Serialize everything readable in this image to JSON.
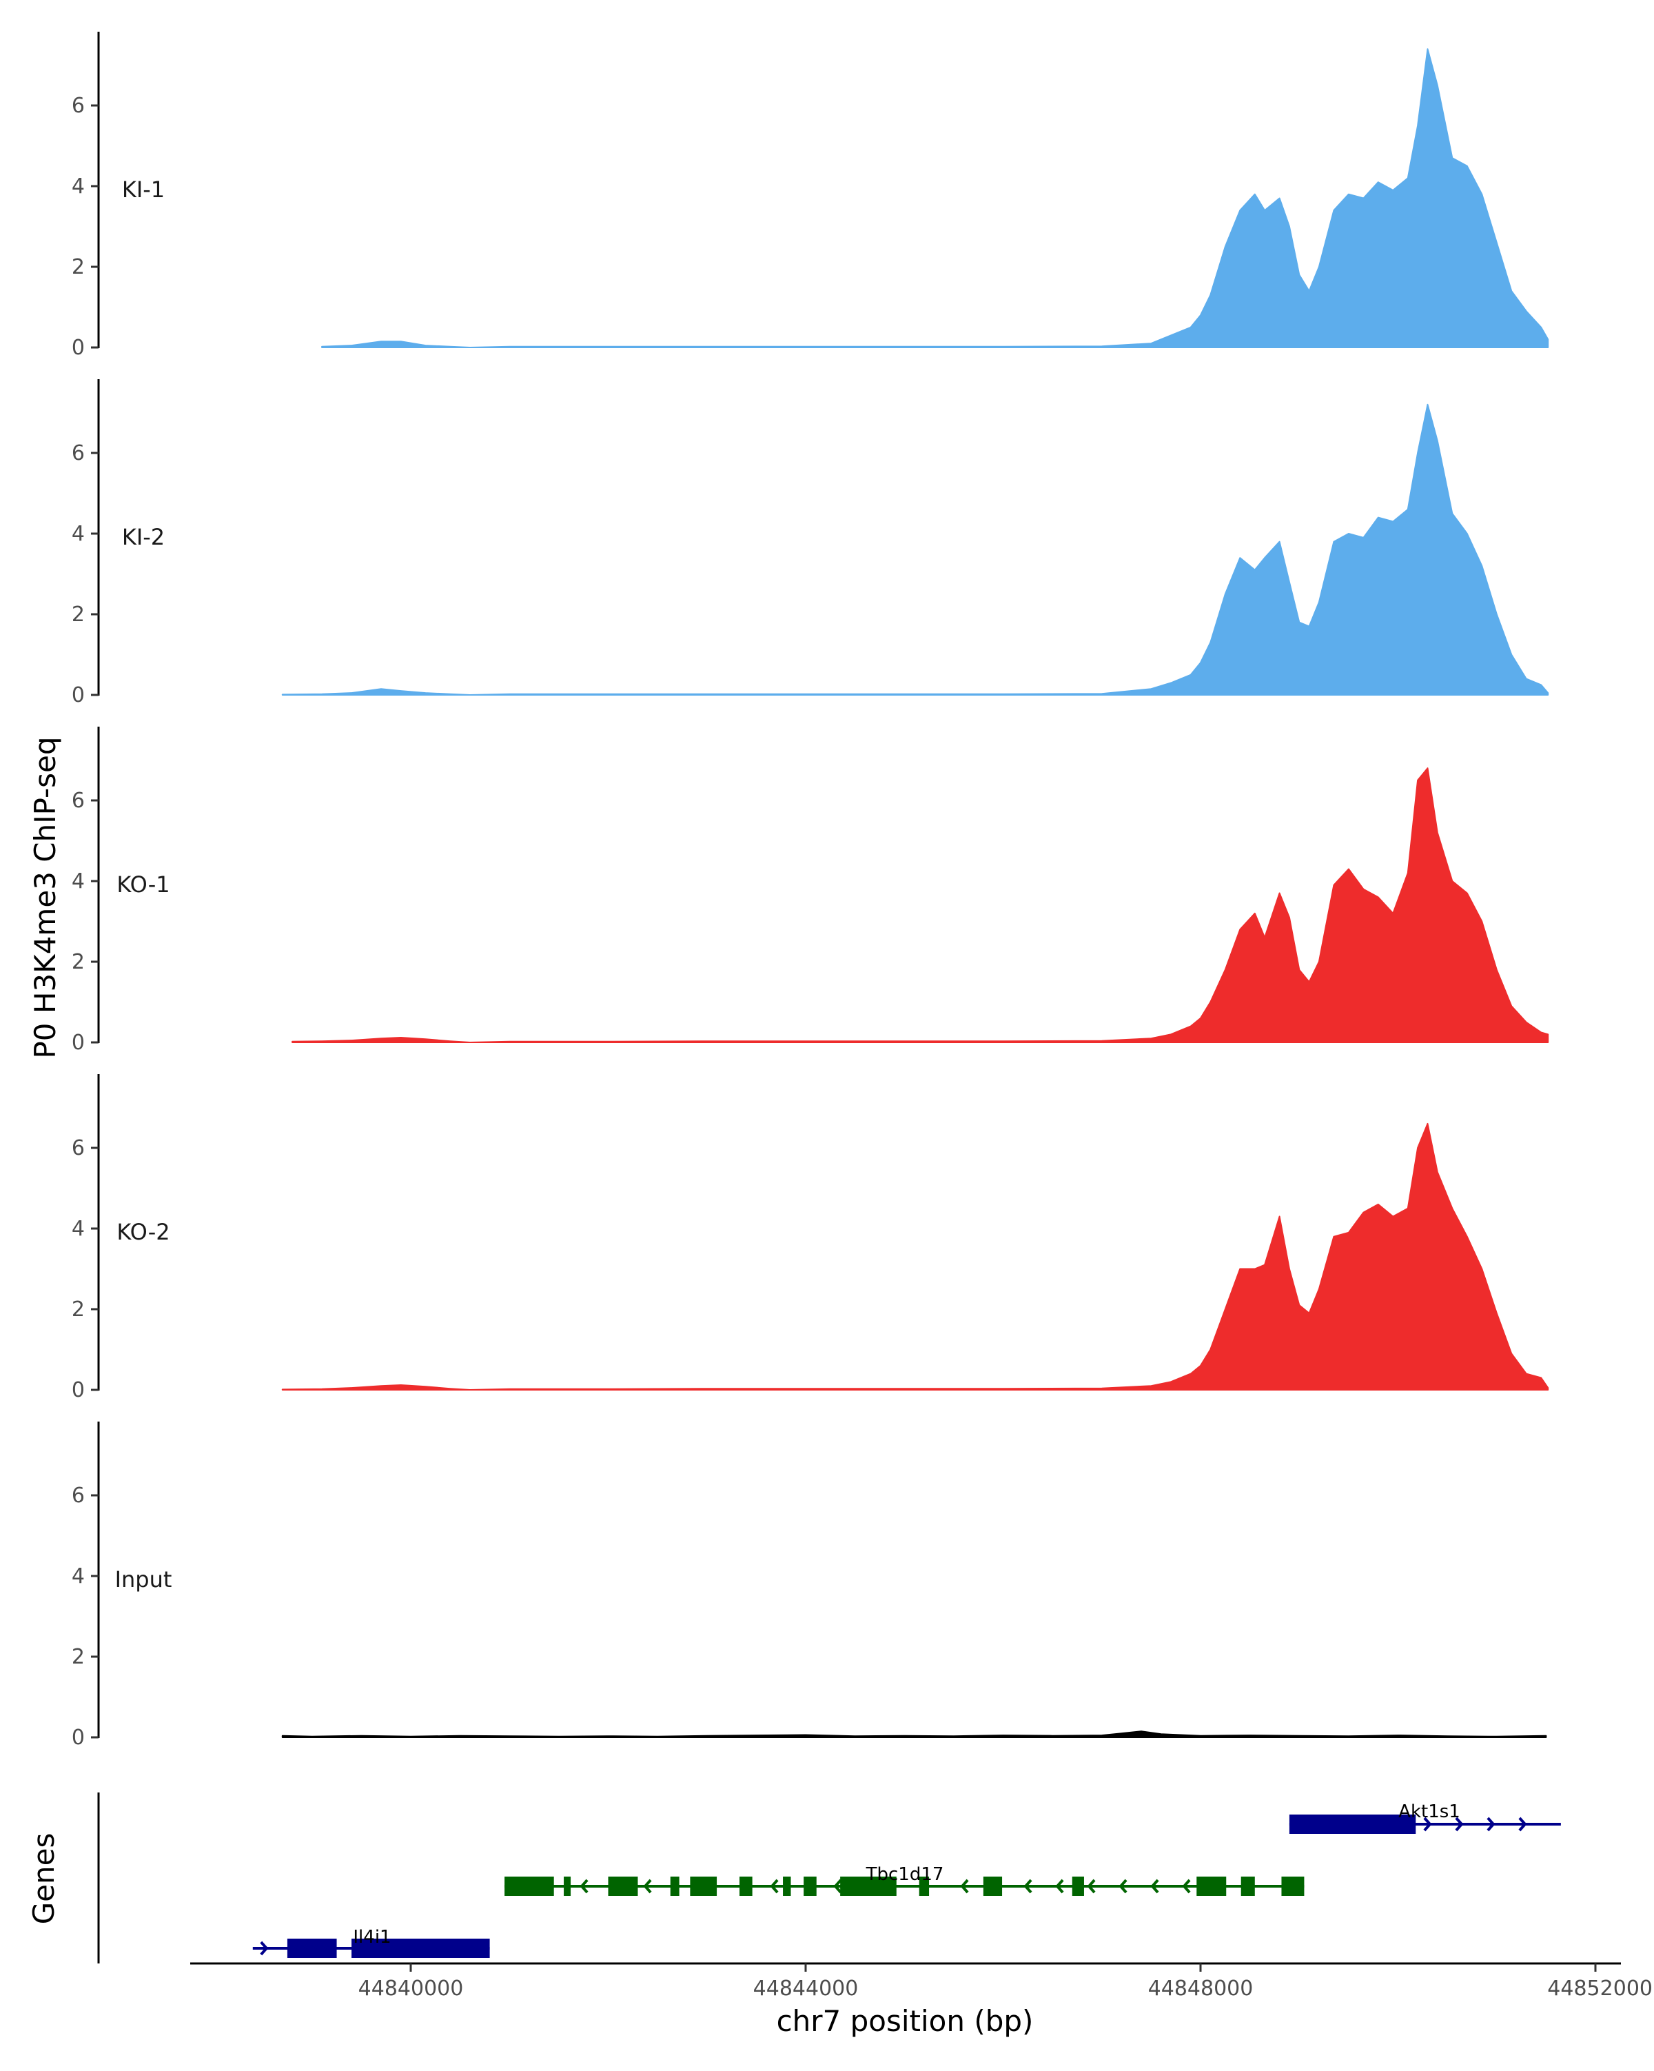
{
  "chart_data": {
    "type": "area",
    "genome": "chr7",
    "xlabel": "chr7 position (bp)",
    "ylabel": "P0 H3K4me3 ChIP-seq",
    "genes_label": "Genes",
    "xlim": [
      44837800,
      44852000
    ],
    "x_ticks": [
      44840000,
      44844000,
      44848000,
      44852000
    ],
    "x_tick_labels": [
      "44840000",
      "44844000",
      "44848000",
      "44852000"
    ],
    "ylim": [
      0,
      7.5
    ],
    "y_ticks": [
      0,
      2,
      4,
      6
    ],
    "y_tick_labels": [
      "0",
      "2",
      "4",
      "6"
    ],
    "tracks": [
      {
        "name": "KI-1",
        "color": "#5DADEC",
        "x": [
          44839100,
          44839400,
          44839700,
          44839900,
          44840150,
          44840400,
          44840600,
          44841000,
          44842000,
          44843000,
          44844000,
          44845000,
          44846000,
          44847000,
          44847500,
          44847700,
          44847900,
          44848000,
          44848100,
          44848250,
          44848400,
          44848550,
          44848650,
          44848800,
          44848900,
          44849000,
          44849100,
          44849200,
          44849350,
          44849500,
          44849650,
          44849800,
          44849950,
          44850100,
          44850200,
          44850300,
          44850400,
          44850550,
          44850700,
          44850850,
          44851000,
          44851150,
          44851300,
          44851450,
          44851520
        ],
        "values": [
          0.02,
          0.05,
          0.15,
          0.15,
          0.05,
          0.02,
          0.0,
          0.02,
          0.02,
          0.02,
          0.02,
          0.02,
          0.02,
          0.03,
          0.1,
          0.3,
          0.5,
          0.8,
          1.3,
          2.5,
          3.4,
          3.8,
          3.4,
          3.7,
          3.0,
          1.8,
          1.4,
          2.0,
          3.4,
          3.8,
          3.7,
          4.1,
          3.9,
          4.2,
          5.5,
          7.4,
          6.5,
          4.7,
          4.5,
          3.8,
          2.6,
          1.4,
          0.9,
          0.5,
          0.2
        ]
      },
      {
        "name": "KI-2",
        "color": "#5DADEC",
        "x": [
          44838700,
          44839100,
          44839400,
          44839700,
          44839900,
          44840150,
          44840400,
          44840600,
          44841000,
          44842000,
          44843000,
          44844000,
          44845000,
          44846000,
          44847000,
          44847500,
          44847700,
          44847900,
          44848000,
          44848100,
          44848250,
          44848400,
          44848550,
          44848650,
          44848800,
          44848900,
          44849000,
          44849100,
          44849200,
          44849350,
          44849500,
          44849650,
          44849800,
          44849950,
          44850100,
          44850200,
          44850300,
          44850400,
          44850550,
          44850700,
          44850850,
          44851000,
          44851150,
          44851300,
          44851450,
          44851520
        ],
        "values": [
          0.01,
          0.02,
          0.05,
          0.15,
          0.1,
          0.05,
          0.02,
          0.0,
          0.02,
          0.02,
          0.02,
          0.02,
          0.02,
          0.02,
          0.03,
          0.15,
          0.3,
          0.5,
          0.8,
          1.3,
          2.5,
          3.4,
          3.1,
          3.4,
          3.8,
          2.8,
          1.8,
          1.7,
          2.3,
          3.8,
          4.0,
          3.9,
          4.4,
          4.3,
          4.6,
          6.0,
          7.2,
          6.3,
          4.5,
          4.0,
          3.2,
          2.0,
          1.0,
          0.4,
          0.25,
          0.05
        ]
      },
      {
        "name": "KO-1",
        "color": "#EE2C2C",
        "x": [
          44838800,
          44839100,
          44839400,
          44839700,
          44839900,
          44840150,
          44840400,
          44840600,
          44841000,
          44842000,
          44843000,
          44844000,
          44845000,
          44846000,
          44847000,
          44847500,
          44847700,
          44847900,
          44848000,
          44848100,
          44848250,
          44848400,
          44848550,
          44848650,
          44848800,
          44848900,
          44849000,
          44849100,
          44849200,
          44849350,
          44849500,
          44849650,
          44849800,
          44849950,
          44850100,
          44850200,
          44850300,
          44850400,
          44850550,
          44850700,
          44850850,
          44851000,
          44851150,
          44851300,
          44851450,
          44851520
        ],
        "values": [
          0.02,
          0.03,
          0.05,
          0.1,
          0.12,
          0.08,
          0.03,
          0.0,
          0.02,
          0.02,
          0.03,
          0.03,
          0.03,
          0.03,
          0.04,
          0.1,
          0.2,
          0.4,
          0.6,
          1.0,
          1.8,
          2.8,
          3.2,
          2.6,
          3.7,
          3.1,
          1.8,
          1.5,
          2.0,
          3.9,
          4.3,
          3.8,
          3.6,
          3.2,
          4.2,
          6.5,
          6.8,
          5.2,
          4.0,
          3.7,
          3.0,
          1.8,
          0.9,
          0.5,
          0.25,
          0.2
        ]
      },
      {
        "name": "KO-2",
        "color": "#EE2C2C",
        "x": [
          44838700,
          44839100,
          44839400,
          44839700,
          44839900,
          44840150,
          44840400,
          44840600,
          44841000,
          44842000,
          44843000,
          44844000,
          44845000,
          44846000,
          44847000,
          44847500,
          44847700,
          44847900,
          44848000,
          44848100,
          44848250,
          44848400,
          44848550,
          44848650,
          44848800,
          44848900,
          44849000,
          44849100,
          44849200,
          44849350,
          44849500,
          44849650,
          44849800,
          44849950,
          44850100,
          44850200,
          44850300,
          44850400,
          44850550,
          44850700,
          44850850,
          44851000,
          44851150,
          44851300,
          44851450,
          44851520
        ],
        "values": [
          0.01,
          0.02,
          0.05,
          0.1,
          0.12,
          0.08,
          0.03,
          0.0,
          0.02,
          0.02,
          0.03,
          0.03,
          0.03,
          0.03,
          0.04,
          0.1,
          0.2,
          0.4,
          0.6,
          1.0,
          2.0,
          3.0,
          3.0,
          3.1,
          4.3,
          3.0,
          2.1,
          1.9,
          2.5,
          3.8,
          3.9,
          4.4,
          4.6,
          4.3,
          4.5,
          6.0,
          6.6,
          5.4,
          4.5,
          3.8,
          3.0,
          1.9,
          0.9,
          0.4,
          0.3,
          0.05
        ]
      },
      {
        "name": "Input",
        "color": "#000000",
        "x": [
          44838700,
          44839000,
          44839500,
          44840000,
          44840500,
          44841000,
          44841500,
          44842000,
          44842500,
          44843000,
          44843500,
          44844000,
          44844500,
          44845000,
          44845500,
          44846000,
          44846500,
          44847000,
          44847200,
          44847400,
          44847600,
          44848000,
          44848500,
          44849000,
          44849500,
          44850000,
          44850500,
          44851000,
          44851500
        ],
        "values": [
          0.04,
          0.02,
          0.04,
          0.02,
          0.04,
          0.03,
          0.02,
          0.03,
          0.02,
          0.04,
          0.05,
          0.06,
          0.03,
          0.04,
          0.03,
          0.05,
          0.04,
          0.05,
          0.1,
          0.15,
          0.08,
          0.04,
          0.05,
          0.04,
          0.03,
          0.05,
          0.03,
          0.02,
          0.04
        ]
      }
    ],
    "genes": [
      {
        "name": "Akt1s1",
        "strand": "+",
        "color": "#00008B",
        "start": 44848900,
        "end": 44851650,
        "exons": [
          [
            44848900,
            44850180
          ]
        ]
      },
      {
        "name": "Tbc1d17",
        "strand": "-",
        "color": "#006400",
        "start": 44840950,
        "end": 44849050,
        "exons": [
          [
            44840950,
            44841450
          ],
          [
            44841550,
            44841620
          ],
          [
            44842000,
            44842300
          ],
          [
            44842630,
            44842720
          ],
          [
            44842830,
            44843100
          ],
          [
            44843330,
            44843460
          ],
          [
            44843770,
            44843850
          ],
          [
            44843980,
            44844110
          ],
          [
            44844350,
            44844920
          ],
          [
            44845150,
            44845250
          ],
          [
            44845800,
            44845990
          ],
          [
            44846700,
            44846820
          ],
          [
            44847960,
            44848260
          ],
          [
            44848410,
            44848550
          ],
          [
            44848820,
            44849050
          ]
        ]
      },
      {
        "name": "Il4i1",
        "strand": "+",
        "color": "#00008B",
        "start": 44838400,
        "end": 44840800,
        "exons": [
          [
            44838750,
            44839250
          ],
          [
            44839400,
            44840800
          ]
        ]
      }
    ]
  }
}
